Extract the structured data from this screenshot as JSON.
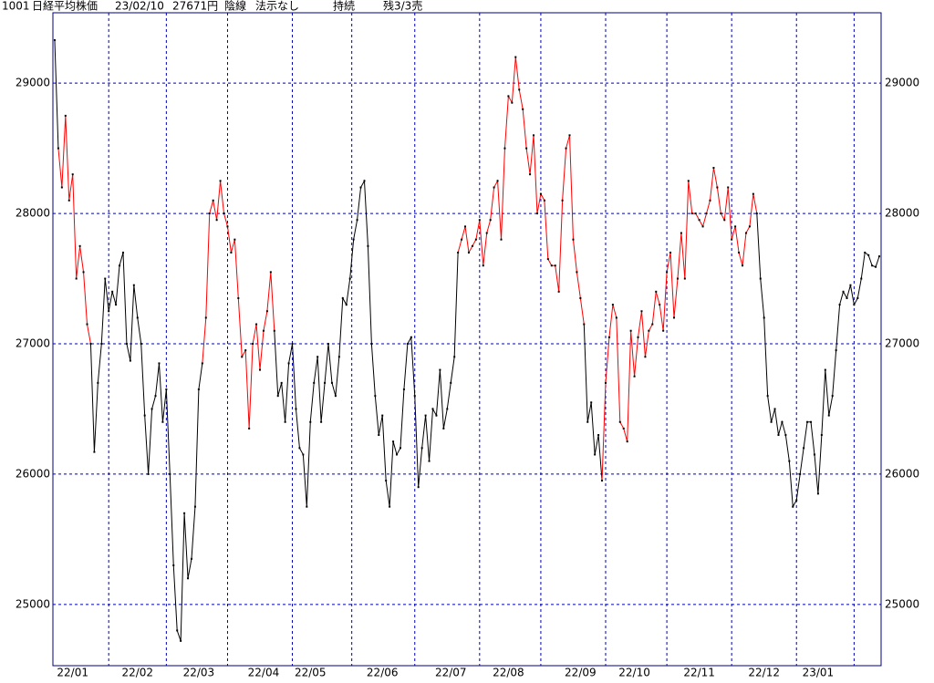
{
  "header": {
    "code": "1001",
    "name": "日経平均株価",
    "date": "23/02/10",
    "price": "27671円",
    "candle": "陰線",
    "signal": "法示なし",
    "status": "持続",
    "position": "残3/3売"
  },
  "chart_data": {
    "type": "line",
    "series": [
      {
        "color": "#000000",
        "values": [
          29330,
          28500,
          null,
          null,
          null,
          null,
          null,
          null,
          null,
          null,
          27000,
          26170,
          26700,
          27000,
          27500,
          27250,
          27400,
          27300,
          27600,
          27700,
          27000,
          26870,
          27450,
          27200,
          27000,
          26450,
          26000,
          26500,
          26600,
          26850,
          26400,
          26650,
          26000,
          25300,
          24800,
          24720,
          25700,
          25200,
          25350,
          25750,
          26650,
          26850,
          null,
          null,
          null,
          null,
          null,
          null,
          null,
          null,
          null,
          null,
          null,
          null,
          null,
          null,
          null,
          null,
          null,
          null,
          null,
          27100,
          26600,
          26700,
          26400,
          26850,
          27000,
          26500,
          26200,
          26150,
          25750,
          26400,
          26700,
          26900,
          26400,
          26700,
          27000,
          26700,
          26600,
          26900,
          27350,
          27300,
          27500,
          27800,
          27950,
          28200,
          28250,
          27750,
          27000,
          26600,
          26300,
          26450,
          25950,
          25750,
          26250,
          26150,
          26200,
          26650,
          27000,
          27050,
          26600,
          25900,
          26200,
          26450,
          26100,
          26500,
          26450,
          26800,
          26350,
          26500,
          26700,
          26900,
          27700,
          null,
          null,
          null,
          null,
          null,
          null,
          null,
          null,
          null,
          null,
          null,
          null,
          null,
          null,
          null,
          null,
          null,
          null,
          null,
          null,
          null,
          null,
          null,
          null,
          null,
          null,
          null,
          null,
          null,
          null,
          null,
          null,
          null,
          null,
          27150,
          26400,
          26550,
          26150,
          26300,
          25950,
          null,
          null,
          null,
          null,
          null,
          null,
          null,
          null,
          null,
          null,
          null,
          null,
          null,
          null,
          null,
          null,
          null,
          null,
          null,
          null,
          null,
          null,
          null,
          null,
          null,
          null,
          null,
          null,
          null,
          null,
          null,
          null,
          null,
          null,
          null,
          null,
          null,
          null,
          null,
          null,
          null,
          null,
          28000,
          27500,
          27200,
          26600,
          26400,
          26500,
          26300,
          26400,
          26300,
          26100,
          25750,
          25800,
          26000,
          26200,
          26400,
          26400,
          26150,
          25850,
          26300,
          26800,
          26450,
          26600,
          26950,
          27300,
          27400,
          27350,
          27450,
          27300,
          27350,
          27500,
          27700,
          27680,
          27600,
          27590,
          27671
        ]
      },
      {
        "color": "#ff0000",
        "values": [
          null,
          28500,
          28200,
          28750,
          28100,
          28300,
          27500,
          27750,
          27550,
          27150,
          27000,
          null,
          null,
          null,
          null,
          null,
          null,
          null,
          null,
          null,
          null,
          null,
          null,
          null,
          null,
          null,
          null,
          null,
          null,
          null,
          null,
          null,
          null,
          null,
          null,
          null,
          null,
          null,
          null,
          null,
          null,
          26850,
          27200,
          28000,
          28100,
          27950,
          28250,
          28000,
          27900,
          27700,
          27800,
          27350,
          26900,
          26950,
          26350,
          27000,
          27150,
          26800,
          27100,
          27250,
          27550,
          27100,
          null,
          null,
          null,
          null,
          null,
          null,
          null,
          null,
          null,
          null,
          null,
          null,
          null,
          null,
          null,
          null,
          null,
          null,
          null,
          null,
          null,
          null,
          null,
          null,
          null,
          null,
          null,
          null,
          null,
          null,
          null,
          null,
          null,
          null,
          null,
          null,
          null,
          null,
          null,
          null,
          null,
          null,
          null,
          null,
          null,
          null,
          null,
          null,
          null,
          null,
          27700,
          27800,
          27900,
          27700,
          27750,
          27800,
          27950,
          27600,
          27850,
          27950,
          28200,
          28250,
          27800,
          28500,
          28900,
          28850,
          29200,
          28950,
          28800,
          28500,
          28300,
          28600,
          28000,
          28150,
          28100,
          27650,
          27600,
          27600,
          27400,
          28100,
          28500,
          28600,
          27800,
          27550,
          27350,
          27150,
          null,
          null,
          null,
          null,
          25950,
          26700,
          27050,
          27300,
          27200,
          26400,
          26350,
          26250,
          27100,
          26750,
          27050,
          27250,
          26900,
          27100,
          27150,
          27400,
          27300,
          27100,
          27550,
          27700,
          27200,
          27500,
          27850,
          27500,
          28250,
          28000,
          28000,
          27950,
          27900,
          28000,
          28100,
          28350,
          28200,
          28000,
          27950,
          28200,
          27800,
          27900,
          27700,
          27600,
          27850,
          27900,
          28150,
          28000,
          null,
          null,
          null,
          null,
          null,
          null,
          null,
          null,
          null,
          null,
          null,
          null,
          null,
          null,
          null,
          null,
          null,
          null,
          null,
          null,
          null,
          null,
          null,
          null,
          null,
          null,
          null,
          null,
          null,
          null,
          null,
          null,
          null,
          null
        ]
      }
    ],
    "marker_color": "#000000",
    "xlim": [
      -0.5,
      229.5
    ],
    "xticks": [
      {
        "value": 5,
        "label": "22/01"
      },
      {
        "value": 23,
        "label": "22/02"
      },
      {
        "value": 40,
        "label": "22/03"
      },
      {
        "value": 58,
        "label": "22/04"
      },
      {
        "value": 71,
        "label": "22/05"
      },
      {
        "value": 91,
        "label": "22/06"
      },
      {
        "value": 110,
        "label": "22/07"
      },
      {
        "value": 126,
        "label": "22/08"
      },
      {
        "value": 146,
        "label": "22/09"
      },
      {
        "value": 161,
        "label": "22/10"
      },
      {
        "value": 179,
        "label": "22/11"
      },
      {
        "value": 197,
        "label": "22/12"
      },
      {
        "value": 212,
        "label": "23/01"
      }
    ],
    "xgrid": [
      15,
      31,
      48,
      66,
      82.5,
      100,
      118,
      135,
      153,
      170,
      188,
      206,
      222
    ],
    "ylim": [
      24530,
      29540
    ],
    "yticks": [
      25000,
      26000,
      27000,
      28000,
      29000
    ],
    "grid": true,
    "grid_color": "#0000aa"
  }
}
